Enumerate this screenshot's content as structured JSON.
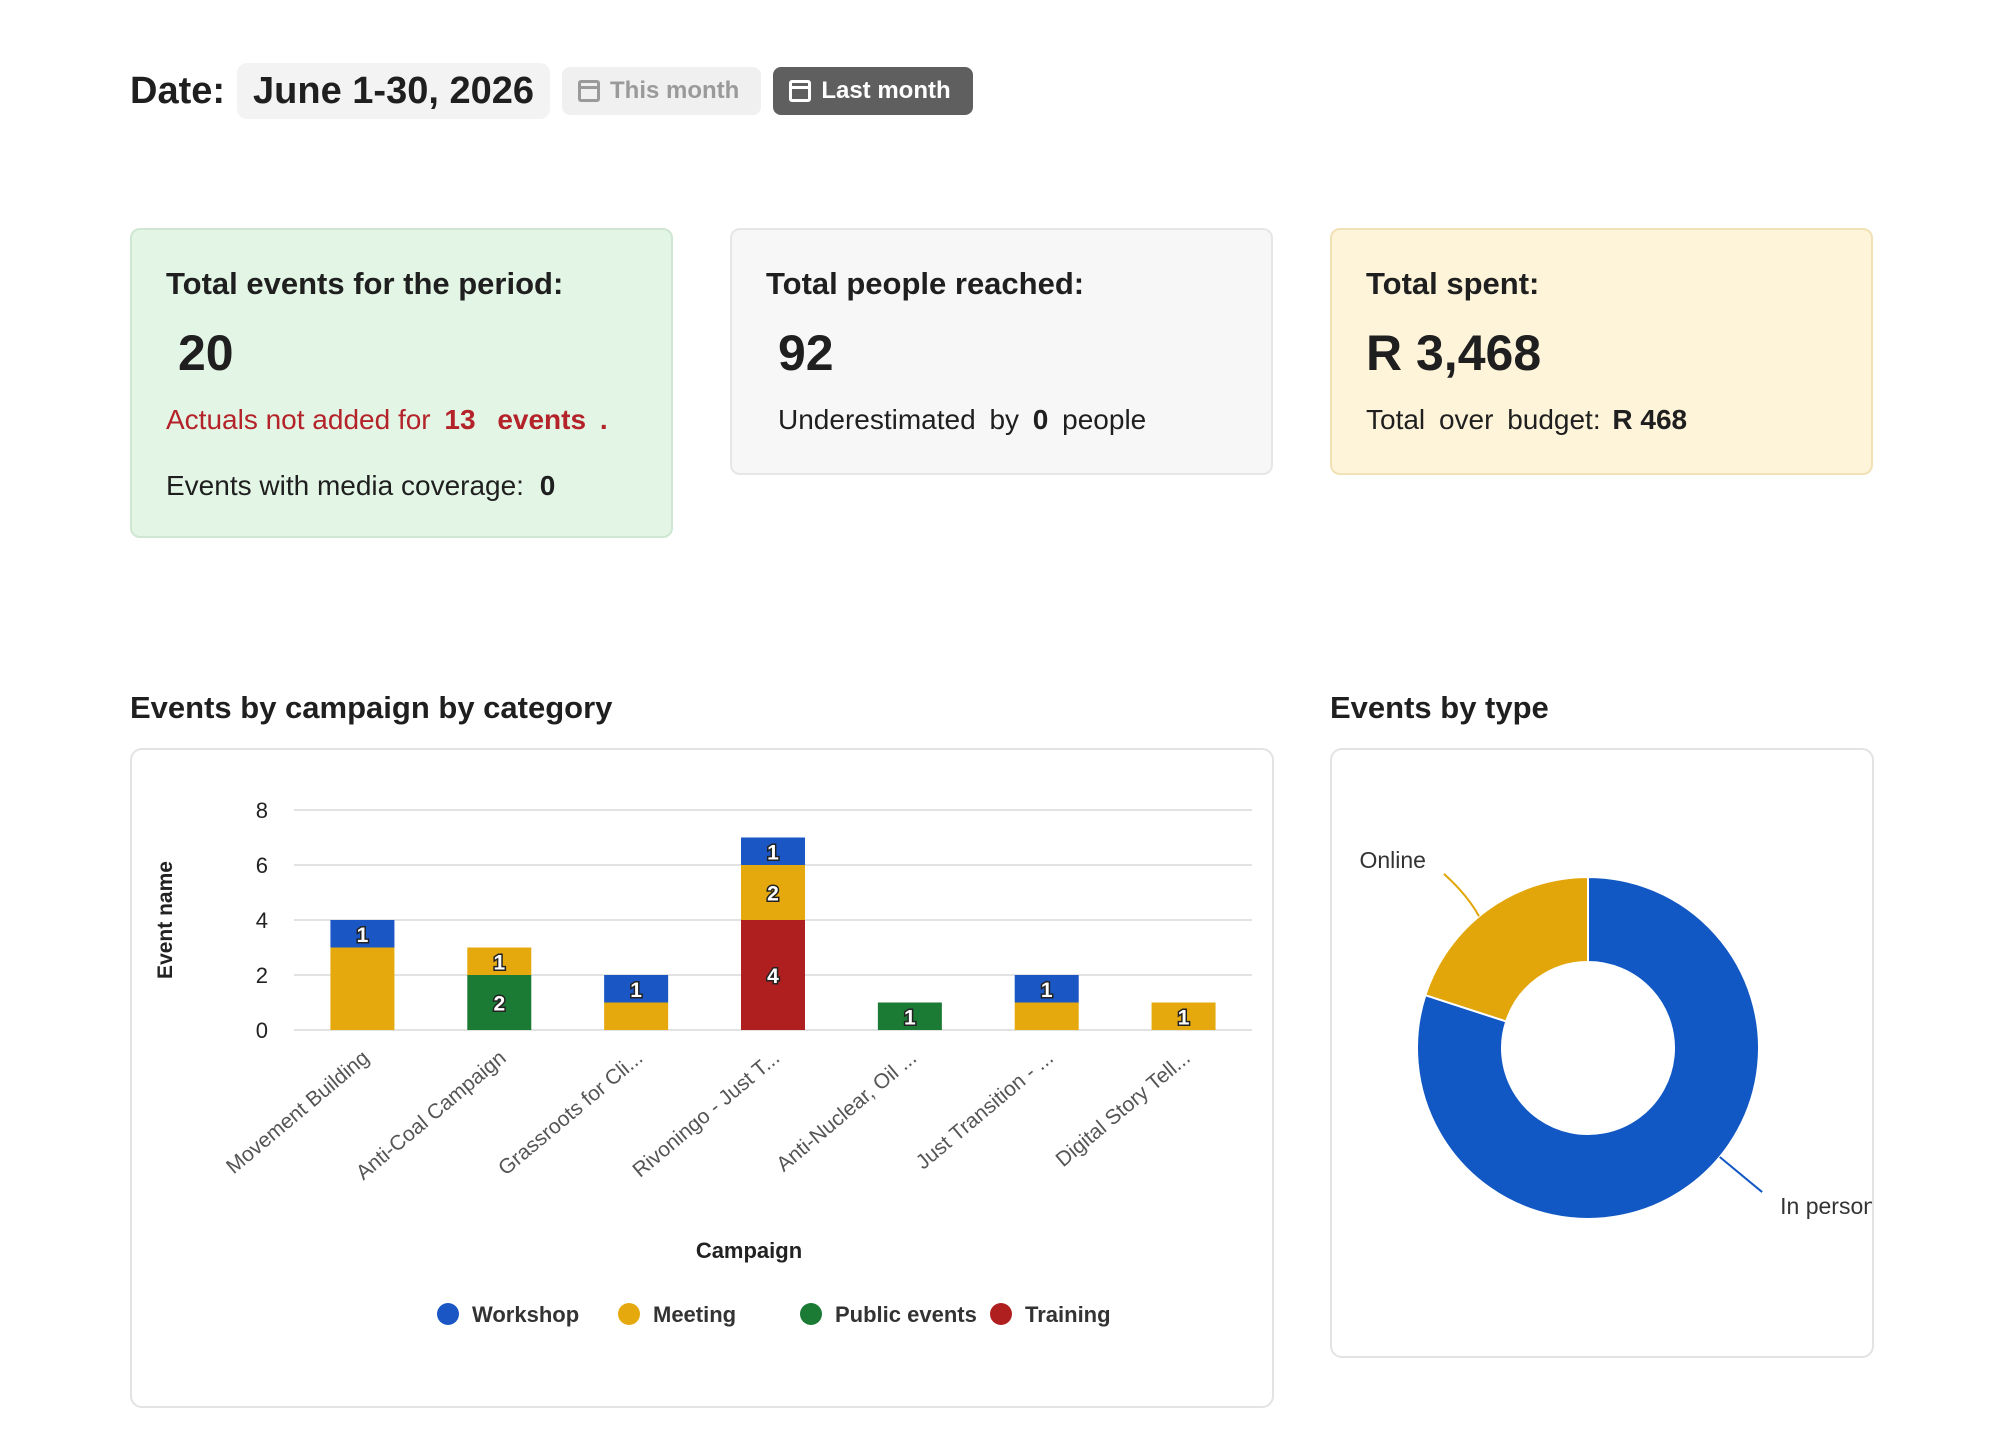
{
  "header": {
    "date_label": "Date:",
    "date_value": "June 1-30, 2026",
    "this_month_label": "This month",
    "last_month_label": "Last month",
    "calendar_icon": "calendar-icon"
  },
  "cards": {
    "events": {
      "title": "Total events for the period:",
      "value": "20",
      "actuals_prefix": "Actuals not added for",
      "actuals_count": "13",
      "actuals_suffix": "events",
      "actuals_period": ".",
      "media_label": "Events with media coverage:",
      "media_value": "0"
    },
    "people": {
      "title": "Total people reached:",
      "value": "92",
      "under_prefix": "Underestimated",
      "under_by": "by",
      "under_value": "0",
      "under_suffix": "people"
    },
    "spent": {
      "title": "Total spent:",
      "value": "R 3,468",
      "over_label": "Total",
      "over_label2": "over",
      "over_label3": "budget:",
      "over_value": "R 468"
    }
  },
  "colors": {
    "workshop": "#1a56c4",
    "meeting": "#e5a90d",
    "public_events": "#1b7a34",
    "training": "#b01f1f",
    "in_person": "#1258c4",
    "online": "#e3a60a"
  },
  "bar_section": {
    "title": "Events by campaign by category"
  },
  "pie_section": {
    "title": "Events by type"
  },
  "chart_data": [
    {
      "type": "bar",
      "stacked": true,
      "title": "Events by campaign by category",
      "xlabel": "Campaign",
      "ylabel": "Event name",
      "ylim": [
        0,
        8
      ],
      "yticks": [
        0,
        2,
        4,
        6,
        8
      ],
      "grid": true,
      "legend": "bottom",
      "categories": [
        "Movement Building",
        "Anti-Coal Campaign",
        "Grassroots for Cli...",
        "Rivoningo - Just T...",
        "Anti-Nuclear, Oil ...",
        "Just Transition - ...",
        "Digital Story Tell..."
      ],
      "series": [
        {
          "name": "Training",
          "color": "#b01f1f",
          "values": [
            0,
            0,
            0,
            4,
            0,
            0,
            0
          ]
        },
        {
          "name": "Public events",
          "color": "#1b7a34",
          "values": [
            0,
            2,
            0,
            0,
            1,
            0,
            0
          ]
        },
        {
          "name": "Meeting",
          "color": "#e5a90d",
          "values": [
            3,
            1,
            1,
            2,
            0,
            1,
            1
          ]
        },
        {
          "name": "Workshop",
          "color": "#1a56c4",
          "values": [
            1,
            0,
            1,
            1,
            0,
            1,
            0
          ]
        }
      ],
      "legend_order": [
        "Workshop",
        "Meeting",
        "Public events",
        "Training"
      ],
      "labeled_segments": [
        [
          1,
          1,
          0,
          1
        ],
        [
          1,
          1,
          1,
          0
        ],
        [
          0,
          0,
          0,
          1
        ],
        [
          1,
          0,
          1,
          1
        ],
        [
          0,
          1,
          0,
          0
        ],
        [
          0,
          0,
          0,
          1
        ],
        [
          0,
          0,
          1,
          0
        ]
      ]
    },
    {
      "type": "pie",
      "donut": true,
      "title": "Events by type",
      "slices": [
        {
          "label": "In person",
          "value": 16,
          "color": "#1258c4"
        },
        {
          "label": "Online",
          "value": 4,
          "color": "#e3a60a"
        }
      ]
    }
  ]
}
